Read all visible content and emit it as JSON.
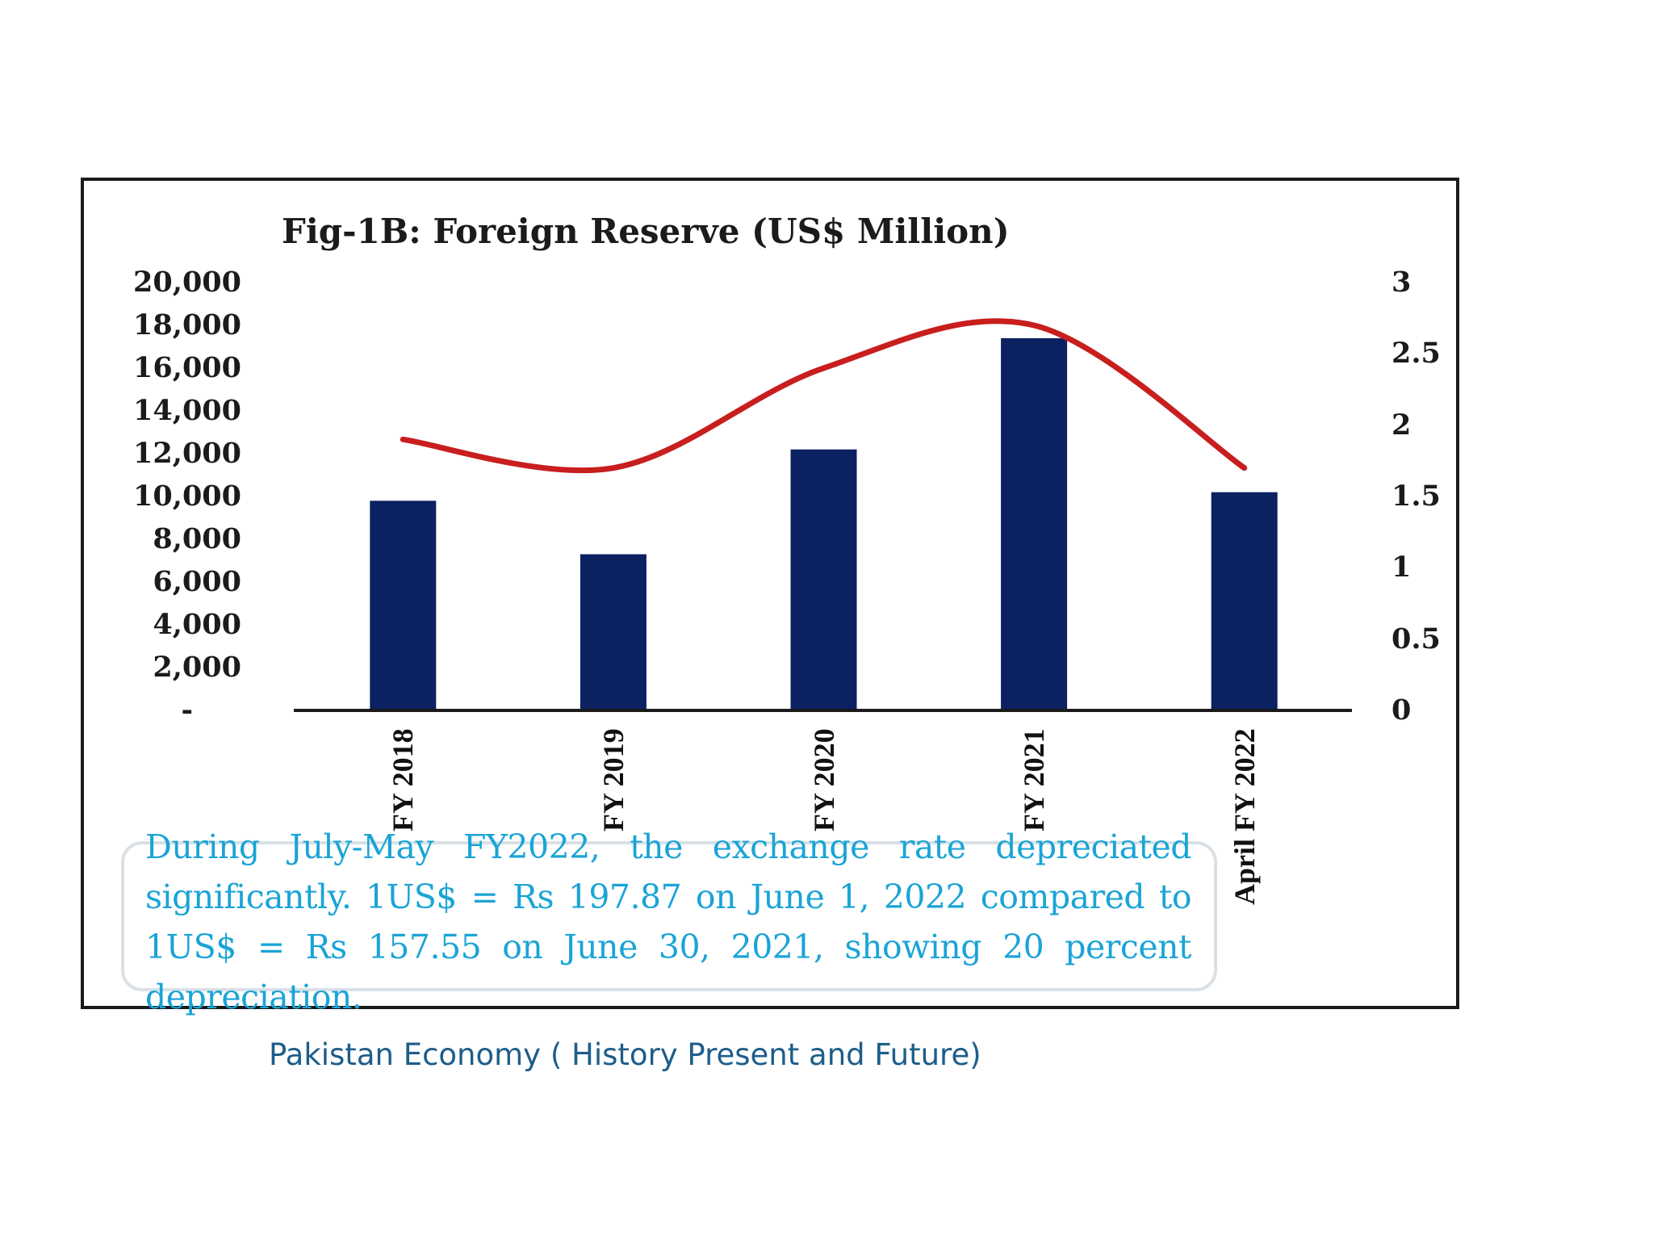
{
  "chart_data": {
    "type": "bar",
    "title": "Fig-1B:  Foreign Reserve (US$ Million)",
    "categories": [
      "FY 2018",
      "FY 2019",
      "FY 2020",
      "FY 2021",
      "April FY 2022"
    ],
    "series": [
      {
        "kind": "bar",
        "axis": "left",
        "values": [
          9800,
          7300,
          12200,
          17400,
          10200
        ],
        "color": "#0b2161"
      },
      {
        "kind": "line",
        "axis": "right",
        "values": [
          1.9,
          1.7,
          2.4,
          2.7,
          1.7
        ],
        "color": "#c81e1e"
      }
    ],
    "y_left": {
      "ylim": [
        0,
        20000
      ],
      "tick_labels": [
        "-",
        "2,000",
        "4,000",
        "6,000",
        "8,000",
        "10,000",
        "12,000",
        "14,000",
        "16,000",
        "18,000",
        "20,000"
      ]
    },
    "y_right": {
      "ylim": [
        0,
        3
      ],
      "tick_labels": [
        "0",
        "0.5",
        "1",
        "1.5",
        "2",
        "2.5",
        "3"
      ]
    },
    "grid": false,
    "legend": "none"
  },
  "note": "During July-May FY2022, the exchange rate depreciated significantly. 1US$ = Rs 197.87 on June 1, 2022 compared to 1US$ = Rs 157.55 on June 30, 2021, showing 20 percent depreciation.",
  "caption": "Pakistan Economy ( History Present and Future)"
}
